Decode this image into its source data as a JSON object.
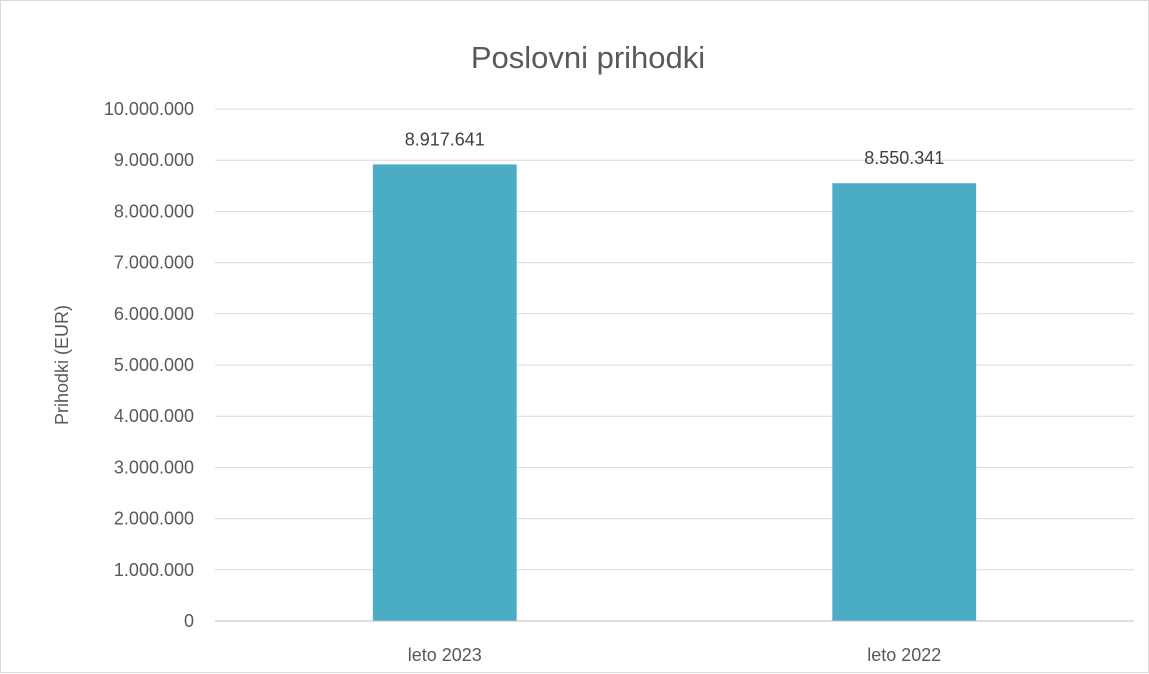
{
  "chart_data": {
    "type": "bar",
    "title": "Poslovni prihodki",
    "xlabel": "",
    "ylabel": "Prihodki (EUR)",
    "categories": [
      "leto 2023",
      "leto 2022"
    ],
    "values": [
      8917641,
      8550341
    ],
    "value_labels": [
      "8.917.641",
      "8.550.341"
    ],
    "ylim": [
      0,
      10000000
    ],
    "yticks": [
      0,
      1000000,
      2000000,
      3000000,
      4000000,
      5000000,
      6000000,
      7000000,
      8000000,
      9000000,
      10000000
    ],
    "ytick_labels": [
      "0",
      "1.000.000",
      "2.000.000",
      "3.000.000",
      "4.000.000",
      "5.000.000",
      "6.000.000",
      "7.000.000",
      "8.000.000",
      "9.000.000",
      "10.000.000"
    ],
    "grid": true,
    "legend": "none",
    "bar_color": "#4bacc6"
  }
}
